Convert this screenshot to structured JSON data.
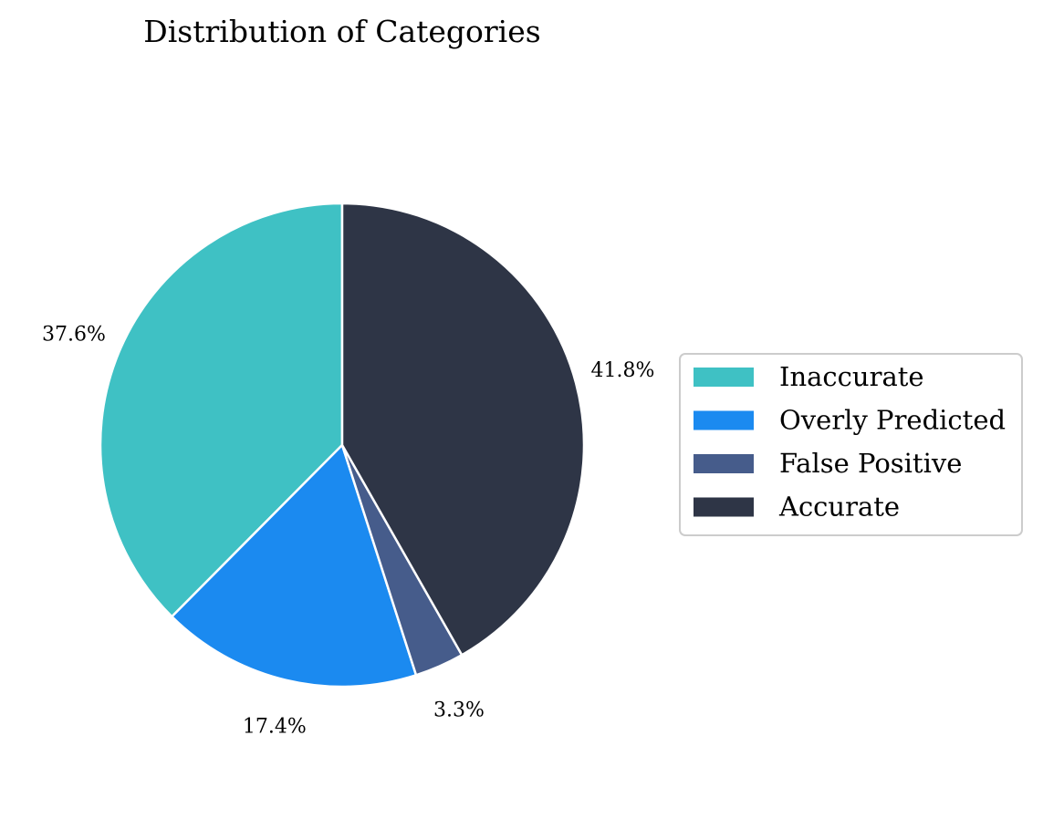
{
  "chart_data": {
    "type": "pie",
    "title": "Distribution of Categories",
    "start_angle_deg": 90,
    "direction": "counterclockwise",
    "slices": [
      {
        "label": "Inaccurate",
        "value": 37.6,
        "pct_text": "37.6%",
        "color": "#3fc1c4"
      },
      {
        "label": "Overly Predicted",
        "value": 17.4,
        "pct_text": "17.4%",
        "color": "#1b8af0"
      },
      {
        "label": "False Positive",
        "value": 3.3,
        "pct_text": "3.3%",
        "color": "#465c8b"
      },
      {
        "label": "Accurate",
        "value": 41.8,
        "pct_text": "41.8%",
        "color": "#2e3546"
      }
    ],
    "legend_position": "right"
  }
}
